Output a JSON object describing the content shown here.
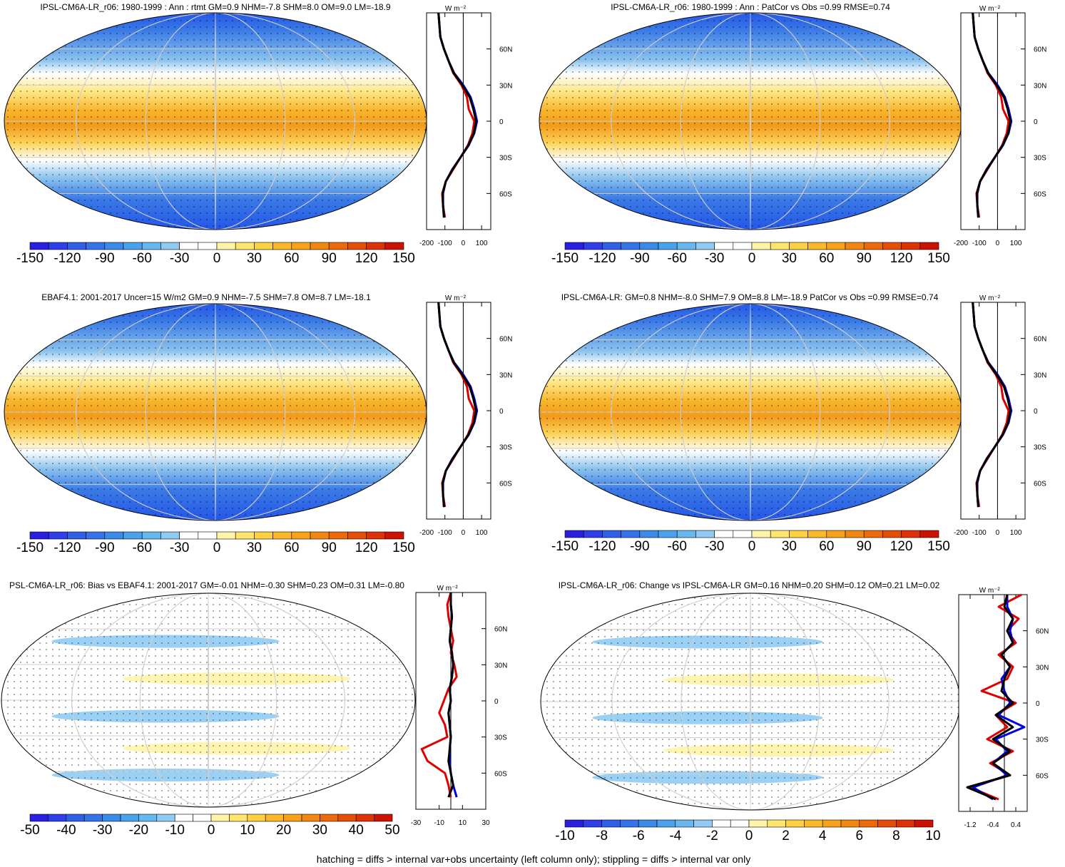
{
  "footer": "hatching = diffs > internal var+obs uncertainty (left column only); stippling = diffs > internal var only",
  "chart_data": [
    {
      "type": "heatmap",
      "title": "IPSL-CM6A-LR_r06: 1980-1999 : Ann : rtmt GM=0.9 NHM=-7.8 SHM=8.0 OM=9.0 LM=-18.9",
      "colorbar": {
        "ticks": [
          "-150",
          "-120",
          "-90",
          "-60",
          "-30",
          "0",
          "30",
          "60",
          "90",
          "120",
          "150"
        ],
        "range": [
          -150,
          150
        ]
      },
      "zonal_mean": {
        "xlabel": "W m⁻²",
        "xticks": [
          "-200",
          "-100",
          "0",
          "100"
        ],
        "xlim": [
          -200,
          150
        ],
        "ylim": [
          -90,
          90
        ],
        "yticks": [
          "60N",
          "30N",
          "0",
          "30S",
          "60S"
        ],
        "lat": [
          -80,
          -70,
          -60,
          -50,
          -40,
          -30,
          -20,
          -10,
          0,
          10,
          20,
          30,
          40,
          50,
          60,
          70,
          80,
          90
        ],
        "series": [
          {
            "color": "#e00000",
            "values": [
              -100,
              -110,
              -115,
              -95,
              -55,
              -15,
              25,
              50,
              60,
              30,
              20,
              -10,
              -55,
              -80,
              -105,
              -125,
              -130,
              -135
            ]
          },
          {
            "color": "#0000e0",
            "values": [
              -105,
              -110,
              -110,
              -95,
              -60,
              -15,
              30,
              60,
              75,
              60,
              40,
              0,
              -50,
              -80,
              -105,
              -125,
              -130,
              -135
            ]
          },
          {
            "color": "#000000",
            "values": [
              -105,
              -110,
              -112,
              -95,
              -58,
              -15,
              28,
              58,
              70,
              55,
              35,
              -5,
              -52,
              -80,
              -105,
              -125,
              -130,
              -135
            ]
          }
        ]
      }
    },
    {
      "type": "heatmap",
      "title": "IPSL-CM6A-LR_r06: 1980-1999 : Ann : PatCor vs Obs =0.99 RMSE=0.74",
      "colorbar": {
        "ticks": [
          "-150",
          "-120",
          "-90",
          "-60",
          "-30",
          "0",
          "30",
          "60",
          "90",
          "120",
          "150"
        ],
        "range": [
          -150,
          150
        ]
      },
      "zonal_mean": {
        "xlabel": "W m⁻²",
        "xticks": [
          "-200",
          "-100",
          "0",
          "100"
        ],
        "xlim": [
          -200,
          150
        ],
        "ylim": [
          -90,
          90
        ],
        "yticks": [
          "60N",
          "30N",
          "0",
          "30S",
          "60S"
        ],
        "lat": [
          -80,
          -70,
          -60,
          -50,
          -40,
          -30,
          -20,
          -10,
          0,
          10,
          20,
          30,
          40,
          50,
          60,
          70,
          80,
          90
        ],
        "series": [
          {
            "color": "#e00000",
            "values": [
              -100,
              -110,
              -115,
              -95,
              -55,
              -15,
              25,
              50,
              60,
              30,
              20,
              -10,
              -55,
              -80,
              -105,
              -125,
              -130,
              -135
            ]
          },
          {
            "color": "#0000e0",
            "values": [
              -105,
              -110,
              -110,
              -95,
              -60,
              -15,
              30,
              60,
              75,
              60,
              40,
              0,
              -50,
              -80,
              -105,
              -125,
              -130,
              -135
            ]
          },
          {
            "color": "#000000",
            "values": [
              -105,
              -110,
              -112,
              -95,
              -58,
              -15,
              28,
              58,
              70,
              55,
              35,
              -5,
              -52,
              -80,
              -105,
              -125,
              -130,
              -135
            ]
          }
        ]
      }
    },
    {
      "type": "heatmap",
      "title": "EBAF4.1: 2001-2017 Uncer=15 W/m2 GM=0.9 NHM=-7.5 SHM=7.8 OM=8.7 LM=-18.1",
      "colorbar": {
        "ticks": [
          "-150",
          "-120",
          "-90",
          "-60",
          "-30",
          "0",
          "30",
          "60",
          "90",
          "120",
          "150"
        ],
        "range": [
          -150,
          150
        ]
      },
      "zonal_mean": {
        "xlabel": "W m⁻²",
        "xticks": [
          "-200",
          "-100",
          "0",
          "100"
        ],
        "xlim": [
          -200,
          150
        ],
        "ylim": [
          -90,
          90
        ],
        "yticks": [
          "60N",
          "30N",
          "0",
          "30S",
          "60S"
        ],
        "lat": [
          -80,
          -70,
          -60,
          -50,
          -40,
          -30,
          -20,
          -10,
          0,
          10,
          20,
          30,
          40,
          50,
          60,
          70,
          80,
          90
        ],
        "series": [
          {
            "color": "#e00000",
            "values": [
              -100,
              -110,
              -115,
              -95,
              -55,
              -15,
              25,
              50,
              60,
              30,
              20,
              -10,
              -55,
              -80,
              -105,
              -125,
              -130,
              -135
            ]
          },
          {
            "color": "#0000e0",
            "values": [
              -105,
              -110,
              -110,
              -95,
              -60,
              -15,
              30,
              60,
              75,
              60,
              40,
              0,
              -50,
              -80,
              -105,
              -125,
              -130,
              -135
            ]
          },
          {
            "color": "#000000",
            "values": [
              -105,
              -110,
              -112,
              -95,
              -58,
              -15,
              28,
              58,
              70,
              55,
              35,
              -5,
              -52,
              -80,
              -105,
              -125,
              -130,
              -135
            ]
          }
        ]
      }
    },
    {
      "type": "heatmap",
      "title": "IPSL-CM6A-LR: GM=0.8 NHM=-8.0 SHM=7.9 OM=8.8 LM=-18.9 PatCor vs Obs =0.99 RMSE=0.74",
      "colorbar": {
        "ticks": [
          "-150",
          "-120",
          "-90",
          "-60",
          "-30",
          "0",
          "30",
          "60",
          "90",
          "120",
          "150"
        ],
        "range": [
          -150,
          150
        ]
      },
      "zonal_mean": {
        "xlabel": "W m⁻²",
        "xticks": [
          "-200",
          "-100",
          "0",
          "100"
        ],
        "xlim": [
          -200,
          150
        ],
        "ylim": [
          -90,
          90
        ],
        "yticks": [
          "60N",
          "30N",
          "0",
          "30S",
          "60S"
        ],
        "lat": [
          -80,
          -70,
          -60,
          -50,
          -40,
          -30,
          -20,
          -10,
          0,
          10,
          20,
          30,
          40,
          50,
          60,
          70,
          80,
          90
        ],
        "series": [
          {
            "color": "#e00000",
            "values": [
              -100,
              -110,
              -115,
              -95,
              -55,
              -15,
              25,
              50,
              60,
              30,
              20,
              -10,
              -55,
              -80,
              -105,
              -125,
              -130,
              -135
            ]
          },
          {
            "color": "#0000e0",
            "values": [
              -105,
              -110,
              -110,
              -95,
              -60,
              -15,
              30,
              60,
              75,
              60,
              40,
              0,
              -50,
              -80,
              -105,
              -125,
              -130,
              -135
            ]
          },
          {
            "color": "#000000",
            "values": [
              -105,
              -110,
              -112,
              -95,
              -58,
              -15,
              28,
              58,
              70,
              55,
              35,
              -5,
              -52,
              -80,
              -105,
              -125,
              -130,
              -135
            ]
          }
        ]
      }
    },
    {
      "type": "heatmap",
      "title": "PSL-CM6A-LR_r06: Bias vs EBAF4.1: 2001-2017 GM=-0.01 NHM=-0.30 SHM=0.23 OM=0.31 LM=-0.80",
      "colorbar": {
        "ticks": [
          "-50",
          "-40",
          "-30",
          "-20",
          "-10",
          "0",
          "10",
          "20",
          "30",
          "40",
          "50"
        ],
        "range": [
          -50,
          50
        ]
      },
      "zonal_mean": {
        "xlabel": "W m⁻²",
        "xticks": [
          "-30",
          "-10",
          "10",
          "30"
        ],
        "xlim": [
          -30,
          30
        ],
        "ylim": [
          -90,
          90
        ],
        "yticks": [
          "60N",
          "30N",
          "0",
          "30S",
          "60S"
        ],
        "lat": [
          -80,
          -70,
          -60,
          -50,
          -40,
          -30,
          -20,
          -10,
          0,
          10,
          20,
          30,
          40,
          50,
          60,
          70,
          80,
          90
        ],
        "series": [
          {
            "color": "#e00000",
            "values": [
              0,
              -2,
              -5,
              -20,
              -25,
              -3,
              -5,
              -10,
              -6,
              -2,
              5,
              3,
              0,
              2,
              0,
              -2,
              -3,
              0
            ]
          },
          {
            "color": "#0000e0",
            "values": [
              5,
              2,
              0,
              -1,
              -1,
              0,
              -1,
              -2,
              0,
              -1,
              1,
              2,
              1,
              -1,
              0,
              1,
              0,
              0
            ]
          },
          {
            "color": "#000000",
            "values": [
              -2,
              2,
              0,
              -2,
              -1,
              0,
              -1,
              -2,
              0,
              -1,
              1,
              2,
              1,
              -1,
              0,
              1,
              0,
              0
            ]
          }
        ]
      }
    },
    {
      "type": "heatmap",
      "title": "IPSL-CM6A-LR_r06: Change vs IPSL-CM6A-LR GM=0.16 NHM=0.20 SHM=0.12 OM=0.21 LM=0.02",
      "colorbar": {
        "ticks": [
          "-10",
          "-8",
          "-6",
          "-4",
          "-2",
          "0",
          "2",
          "4",
          "6",
          "8",
          "10"
        ],
        "range": [
          -10,
          10
        ]
      },
      "zonal_mean": {
        "xlabel": "W m⁻²",
        "xticks": [
          "-1.2",
          "-0.4",
          "0.4"
        ],
        "xlim": [
          -1.6,
          0.8
        ],
        "ylim": [
          -90,
          90
        ],
        "yticks": [
          "60N",
          "30N",
          "0",
          "30S",
          "60S"
        ],
        "lat": [
          -80,
          -70,
          -60,
          -50,
          -40,
          -30,
          -20,
          -10,
          0,
          10,
          20,
          30,
          40,
          50,
          60,
          70,
          80,
          90
        ],
        "series": [
          {
            "color": "#e00000",
            "values": [
              -0.2,
              -1.2,
              0.2,
              -0.5,
              0.3,
              -0.6,
              0.1,
              -0.3,
              0.4,
              -0.8,
              0.1,
              0.3,
              -0.2,
              0.4,
              0.1,
              0.5,
              -0.2,
              0.6
            ]
          },
          {
            "color": "#0000e0",
            "values": [
              -0.4,
              -1.1,
              0.1,
              -0.4,
              0.1,
              -0.3,
              0.7,
              -0.2,
              0.2,
              0.0,
              -0.1,
              0.2,
              -0.1,
              0.3,
              0.2,
              0.3,
              0.1,
              0.1
            ]
          },
          {
            "color": "#000000",
            "values": [
              -0.3,
              -1.3,
              0.2,
              -0.4,
              0.2,
              -0.4,
              0.3,
              -0.3,
              0.3,
              -0.1,
              0.0,
              0.2,
              -0.1,
              0.3,
              0.1,
              0.3,
              0.0,
              0.1
            ]
          }
        ]
      }
    }
  ]
}
